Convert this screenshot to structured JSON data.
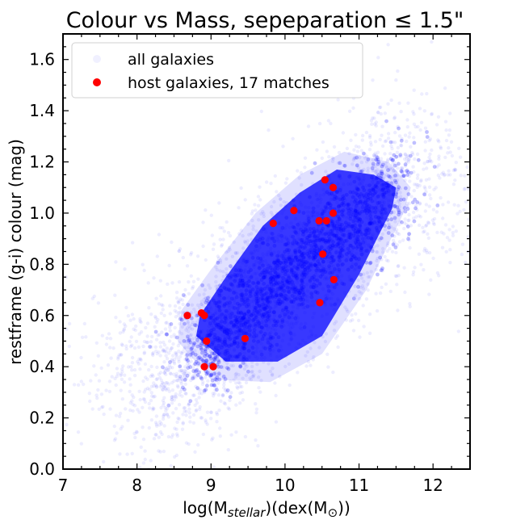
{
  "chart_data": {
    "type": "scatter",
    "title": "Colour vs Mass, sepeparation ≤ 1.5\"",
    "xlabel_prefix": "log(M",
    "xlabel_sub": "stellar",
    "xlabel_suffix": ")(dex(M",
    "xlabel_sun": "⊙",
    "xlabel_end": "))",
    "ylabel": "restframe (g-i) colour (mag)",
    "xlim": [
      7,
      12.5
    ],
    "ylim": [
      0,
      1.7
    ],
    "xticks": [
      7,
      8,
      9,
      10,
      11,
      12
    ],
    "yticks": [
      0.0,
      0.2,
      0.4,
      0.6,
      0.8,
      1.0,
      1.2,
      1.4,
      1.6
    ],
    "xtick_labels": [
      "7",
      "8",
      "9",
      "10",
      "11",
      "12"
    ],
    "ytick_labels": [
      "0.0",
      "0.2",
      "0.4",
      "0.6",
      "0.8",
      "1.0",
      "1.2",
      "1.4",
      "1.6"
    ],
    "legend_position": "top-left",
    "legend": [
      {
        "label": "all galaxies",
        "color": "#b0b0ff"
      },
      {
        "label": "host galaxies, 17 matches",
        "color": "#ff0000"
      }
    ],
    "background_series": {
      "name": "all galaxies",
      "color": "#0000ff",
      "description_distribution": "dense band from (8.5, 0.45) to (11.5, 1.1)"
    },
    "host_series": {
      "name": "host galaxies, 17 matches",
      "color": "#ff0000",
      "points": [
        {
          "x": 8.68,
          "y": 0.6
        },
        {
          "x": 8.87,
          "y": 0.61
        },
        {
          "x": 8.91,
          "y": 0.6
        },
        {
          "x": 8.94,
          "y": 0.5
        },
        {
          "x": 8.91,
          "y": 0.4
        },
        {
          "x": 9.03,
          "y": 0.4
        },
        {
          "x": 9.46,
          "y": 0.51
        },
        {
          "x": 9.84,
          "y": 0.96
        },
        {
          "x": 10.12,
          "y": 1.01
        },
        {
          "x": 10.46,
          "y": 0.97
        },
        {
          "x": 10.56,
          "y": 0.97
        },
        {
          "x": 10.54,
          "y": 1.13
        },
        {
          "x": 10.65,
          "y": 1.1
        },
        {
          "x": 10.65,
          "y": 1.0
        },
        {
          "x": 10.51,
          "y": 0.84
        },
        {
          "x": 10.66,
          "y": 0.74
        },
        {
          "x": 10.47,
          "y": 0.65
        }
      ]
    }
  }
}
